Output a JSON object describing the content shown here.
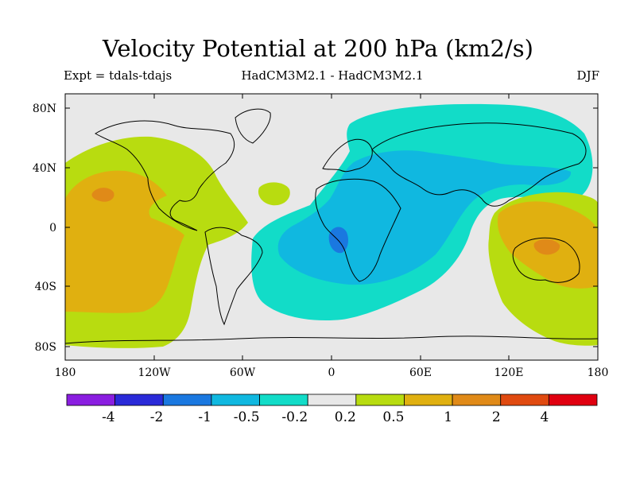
{
  "title": "Velocity Potential at 200 hPa (km2/s)",
  "experiment": "Expt = tdals-tdajs",
  "models": "HadCM3M2.1 - HadCM3M2.1",
  "season": "DJF",
  "lat_labels": [
    "80N",
    "40N",
    "0",
    "40S",
    "80S"
  ],
  "lon_labels": [
    "180",
    "120W",
    "60W",
    "0",
    "60E",
    "120E",
    "180"
  ],
  "colorbar": {
    "levels": [
      "-4",
      "-2",
      "-1",
      "-0.5",
      "-0.2",
      "0.2",
      "0.5",
      "1",
      "2",
      "4"
    ],
    "colors": [
      "#8a1ee0",
      "#2a2ad8",
      "#1a78e0",
      "#10b8e0",
      "#12dcc8",
      "#e8e8e8",
      "#b8dc10",
      "#e0b010",
      "#e08a18",
      "#e04a10",
      "#e00010"
    ]
  },
  "field_colors": {
    "neutral": "#e8e8e8",
    "neg02": "#12dcc8",
    "neg05": "#10b8e0",
    "neg1": "#1a78e0",
    "pos02": "#b8dc10",
    "pos05": "#e0b010",
    "pos1": "#e08a18"
  }
}
